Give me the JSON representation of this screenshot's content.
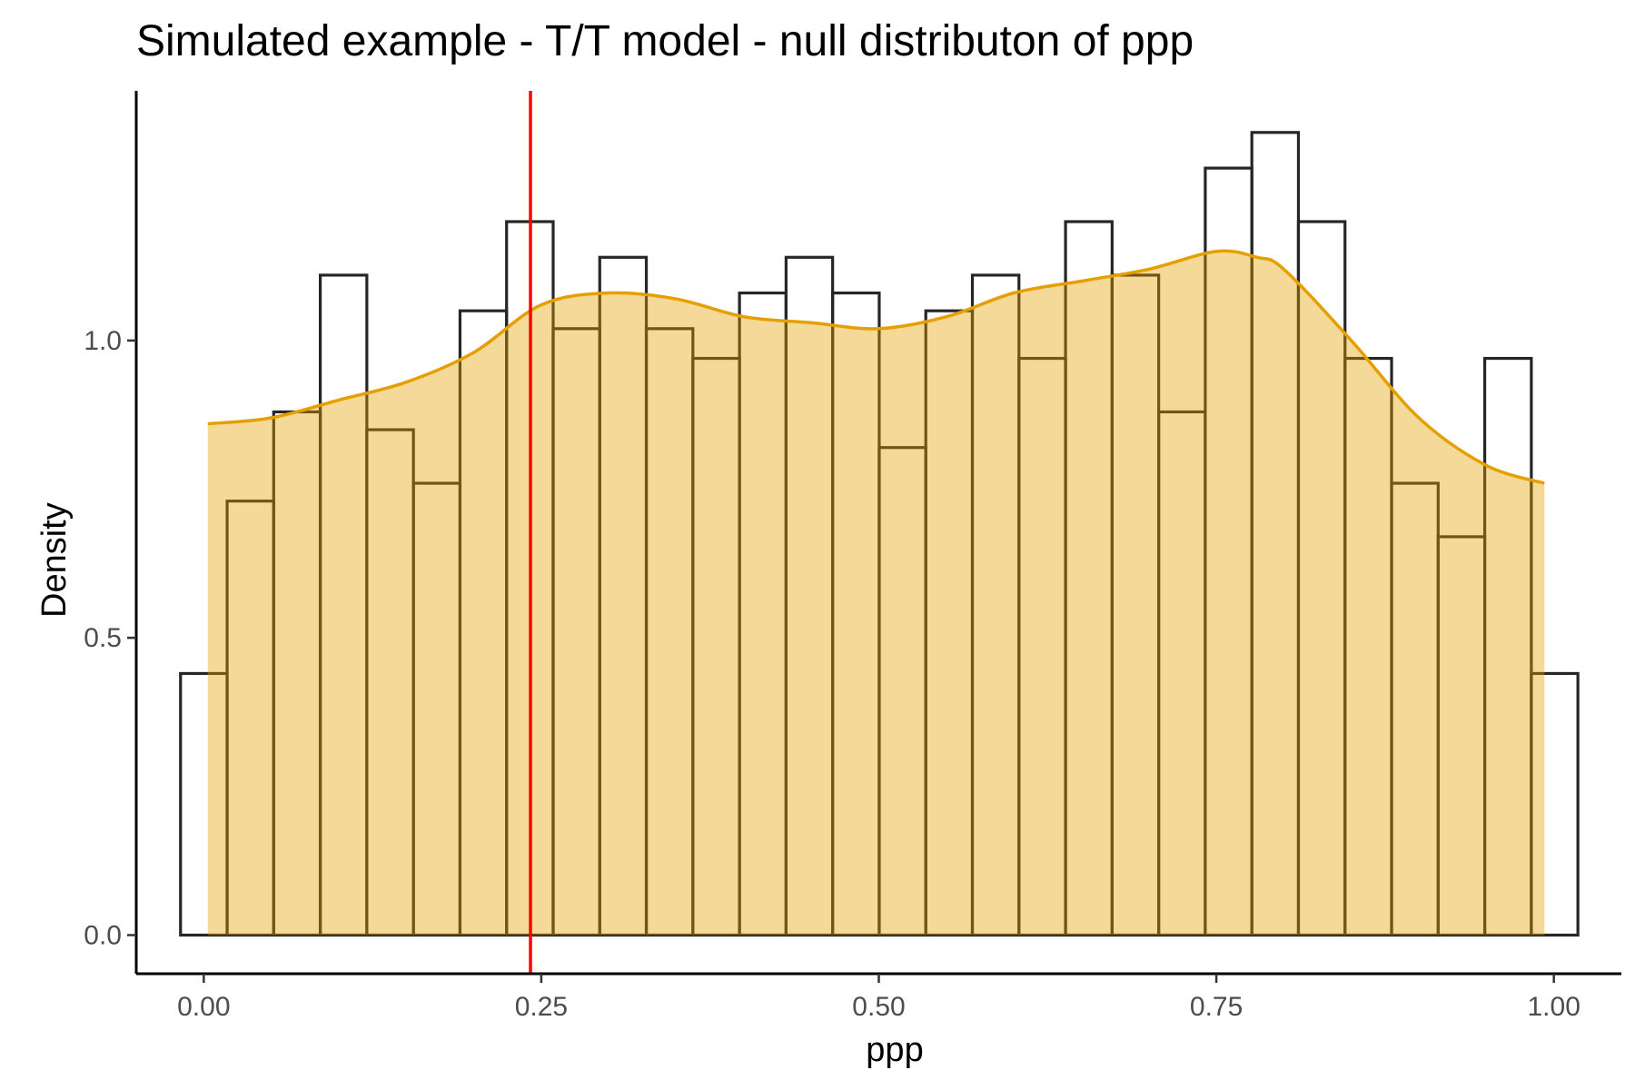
{
  "chart_data": {
    "type": "histogram",
    "title": "Simulated example - T/T model - null distributon of ppp",
    "xlabel": "ppp",
    "ylabel": "Density",
    "xlim": [
      -0.05,
      1.05
    ],
    "ylim": [
      -0.065,
      1.42
    ],
    "x_ticks": [
      "0.00",
      "0.25",
      "0.50",
      "0.75",
      "1.00"
    ],
    "x_tick_values": [
      0.0,
      0.25,
      0.5,
      0.75,
      1.0
    ],
    "y_ticks": [
      "0.0",
      "0.5",
      "1.0"
    ],
    "y_tick_values": [
      0.0,
      0.5,
      1.0
    ],
    "grid": false,
    "legend": "none",
    "histogram": {
      "bin_width": 0.0345,
      "bin_start": -0.0172,
      "values": [
        0.44,
        0.73,
        0.88,
        1.11,
        0.85,
        0.76,
        1.05,
        1.2,
        1.02,
        1.14,
        1.02,
        0.97,
        1.08,
        1.14,
        1.08,
        0.82,
        1.05,
        1.11,
        0.97,
        1.2,
        1.11,
        0.88,
        1.29,
        1.35,
        1.2,
        0.97,
        0.76,
        0.67,
        0.97,
        0.44
      ],
      "fill": "none",
      "stroke": "#262626"
    },
    "density": {
      "x": [
        0.003,
        0.05,
        0.1,
        0.15,
        0.2,
        0.25,
        0.3,
        0.35,
        0.4,
        0.45,
        0.5,
        0.55,
        0.6,
        0.65,
        0.7,
        0.75,
        0.78,
        0.8,
        0.85,
        0.9,
        0.95,
        0.993
      ],
      "y": [
        0.86,
        0.87,
        0.9,
        0.93,
        0.98,
        1.06,
        1.08,
        1.07,
        1.04,
        1.03,
        1.02,
        1.04,
        1.08,
        1.1,
        1.12,
        1.15,
        1.14,
        1.12,
        1.0,
        0.87,
        0.79,
        0.76
      ],
      "line_color": "#E69F00",
      "fill_color": "#F0D29D"
    },
    "vline": {
      "x": 0.242,
      "color": "#FF0000"
    }
  }
}
